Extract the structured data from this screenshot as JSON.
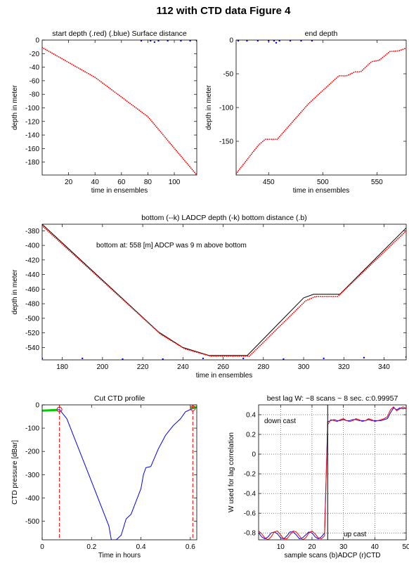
{
  "title": "112 with CTD data   Figure 4",
  "chart_data": [
    {
      "type": "line",
      "title": "start depth (.red) (.blue) Surface distance",
      "xlabel": "time in ensembles",
      "ylabel": "depth in meter",
      "xlim": [
        0,
        117
      ],
      "ylim": [
        -199,
        0
      ],
      "xticks": [
        20,
        40,
        60,
        80,
        100
      ],
      "yticks": [
        0,
        -20,
        -40,
        -60,
        -80,
        -100,
        -120,
        -140,
        -160,
        -180
      ],
      "grid": false,
      "series": [
        {
          "color": "#ff0000",
          "style": "dotted",
          "x": [
            0,
            40,
            80,
            117
          ],
          "values": [
            -11,
            -55,
            -113,
            -199
          ]
        },
        {
          "color": "#0000ff",
          "style": "dots",
          "x": [
            75,
            82,
            85,
            88,
            95,
            105,
            112,
            117
          ],
          "values": [
            -1,
            -1,
            -3,
            -1,
            -1,
            -1,
            -1,
            -1
          ]
        }
      ]
    },
    {
      "type": "line",
      "title": "end depth",
      "xlabel": "time in ensembles",
      "ylabel": "depth in meter",
      "xlim": [
        420,
        577
      ],
      "ylim": [
        -200,
        0
      ],
      "xticks": [
        450,
        500,
        550
      ],
      "yticks": [
        0,
        -50,
        -100,
        -150
      ],
      "grid": false,
      "series": [
        {
          "color": "#ff0000",
          "style": "dotted",
          "x": [
            420,
            441,
            447,
            458,
            487,
            510,
            515,
            522,
            530,
            535,
            545,
            552,
            562,
            570,
            577
          ],
          "values": [
            -198,
            -155,
            -147,
            -147,
            -94,
            -60,
            -53,
            -53,
            -47,
            -47,
            -32,
            -30,
            -17,
            -16,
            -12
          ]
        },
        {
          "color": "#0000ff",
          "style": "dots",
          "x": [
            422,
            430,
            440,
            450,
            455,
            457,
            460,
            470,
            480,
            490
          ],
          "values": [
            -1,
            -1,
            -1,
            -1,
            -1,
            -4,
            -1,
            -1,
            -1,
            -1
          ]
        }
      ]
    },
    {
      "type": "line",
      "title": "bottom (--k) LADCP depth (-k) bottom distance (.b)",
      "xlabel": "time in ensembles",
      "ylabel": "depth in meter",
      "annotations": [
        "bottom at: 558 [m]   ADCP was 9 m above bottom"
      ],
      "xlim": [
        170,
        351
      ],
      "ylim": [
        -557,
        -371
      ],
      "xticks": [
        180,
        200,
        220,
        240,
        260,
        280,
        300,
        320,
        340
      ],
      "yticks": [
        -380,
        -400,
        -420,
        -440,
        -460,
        -480,
        -500,
        -520,
        -540
      ],
      "grid": false,
      "series": [
        {
          "color": "#000000",
          "style": "line",
          "x": [
            170,
            228,
            240,
            253,
            272,
            300,
            305,
            318,
            351
          ],
          "values": [
            -371,
            -519,
            -540,
            -551,
            -551,
            -472,
            -467,
            -467,
            -376
          ]
        },
        {
          "color": "#ff0000",
          "style": "dotted",
          "x": [
            170,
            229,
            241,
            254,
            273,
            301,
            306,
            317,
            351
          ],
          "values": [
            -373,
            -522,
            -542,
            -552,
            -552,
            -476,
            -470,
            -470,
            -380
          ]
        },
        {
          "color": "#0000ff",
          "style": "dots",
          "x": [
            170,
            190,
            210,
            230,
            250,
            270,
            290,
            310,
            330,
            351
          ],
          "values": [
            -555,
            -555,
            -556,
            -556,
            -555,
            -555,
            -556,
            -555,
            -554,
            -553
          ]
        }
      ]
    },
    {
      "type": "line",
      "title": "Cut CTD profile",
      "xlabel": "Time in hours",
      "ylabel": "CTD pressure [dBar]",
      "xlim": [
        0,
        0.626
      ],
      "ylim": [
        -580,
        0
      ],
      "xticks": [
        0,
        0.2,
        0.4,
        0.6
      ],
      "yticks": [
        0,
        -100,
        -200,
        -300,
        -400,
        -500
      ],
      "grid": false,
      "series": [
        {
          "color": "#0000ff",
          "style": "line",
          "x": [
            0,
            0.05,
            0.07,
            0.1,
            0.2,
            0.27,
            0.28,
            0.3,
            0.32,
            0.34,
            0.36,
            0.4,
            0.41,
            0.42,
            0.44,
            0.47,
            0.5,
            0.53,
            0.56,
            0.58,
            0.6,
            0.626
          ],
          "values": [
            -25,
            -25,
            -20,
            -60,
            -330,
            -520,
            -580,
            -580,
            -560,
            -490,
            -470,
            -360,
            -300,
            -270,
            -265,
            -190,
            -130,
            -90,
            -60,
            -30,
            -20,
            -12
          ]
        },
        {
          "color": "#00cc00",
          "style": "thick",
          "x": [
            0,
            0.06
          ],
          "values": [
            -25,
            -22
          ]
        },
        {
          "color": "#00cc00",
          "style": "thick",
          "x": [
            0.6,
            0.626
          ],
          "values": [
            -15,
            -10
          ]
        },
        {
          "color": "#ff0000",
          "style": "dashed",
          "x": [
            0.07,
            0.07
          ],
          "values": [
            0,
            -580
          ]
        },
        {
          "color": "#ff0000",
          "style": "dashed",
          "x": [
            0.61,
            0.61
          ],
          "values": [
            0,
            -580
          ]
        },
        {
          "color": "#ff0000",
          "style": "circle",
          "x": [
            0.07,
            0.61
          ],
          "values": [
            -20,
            -15
          ]
        }
      ]
    },
    {
      "type": "line",
      "title": "best lag W: −8 scans ~ 8 sec.  c:0.99957",
      "xlabel": "sample scans (b)ADCP (r)CTD",
      "ylabel": "W used for lag correlation",
      "annotations": [
        "down cast",
        "up cast"
      ],
      "xlim": [
        3,
        50
      ],
      "ylim": [
        -0.87,
        0.5
      ],
      "xticks": [
        10,
        20,
        30,
        40,
        50
      ],
      "yticks": [
        -0.8,
        -0.6,
        -0.4,
        -0.2,
        0,
        0.2,
        0.4
      ],
      "grid": true,
      "series": [
        {
          "color": "#0000ff",
          "style": "line",
          "x": [
            3,
            4,
            5,
            6,
            7,
            8,
            9,
            10,
            11,
            12,
            13,
            14,
            15,
            16,
            17,
            18,
            19,
            20,
            21,
            22,
            23,
            24,
            25,
            26,
            27,
            28,
            29,
            30,
            31,
            32,
            33,
            34,
            35,
            36,
            37,
            38,
            39,
            40,
            41,
            42,
            43,
            44,
            45,
            46,
            47,
            48,
            49,
            50
          ],
          "values": [
            -0.8,
            -0.84,
            -0.86,
            -0.84,
            -0.8,
            -0.79,
            -0.81,
            -0.85,
            -0.86,
            -0.83,
            -0.79,
            -0.79,
            -0.82,
            -0.86,
            -0.85,
            -0.82,
            -0.79,
            -0.8,
            -0.84,
            -0.86,
            -0.84,
            -0.8,
            0.33,
            0.34,
            0.35,
            0.34,
            0.34,
            0.35,
            0.34,
            0.34,
            0.35,
            0.35,
            0.34,
            0.34,
            0.34,
            0.35,
            0.34,
            0.34,
            0.34,
            0.34,
            0.35,
            0.36,
            0.42,
            0.47,
            0.45,
            0.47,
            0.46,
            0.47
          ]
        },
        {
          "color": "#ff0000",
          "style": "line",
          "x": [
            3,
            4,
            5,
            6,
            7,
            8,
            9,
            10,
            11,
            12,
            13,
            14,
            15,
            16,
            17,
            18,
            19,
            20,
            21,
            22,
            23,
            24,
            25,
            26,
            27,
            28,
            29,
            30,
            31,
            32,
            33,
            34,
            35,
            36,
            37,
            38,
            39,
            40,
            41,
            42,
            43,
            44,
            45,
            46,
            47,
            48,
            49,
            50
          ],
          "values": [
            -0.78,
            -0.81,
            -0.85,
            -0.87,
            -0.84,
            -0.79,
            -0.78,
            -0.82,
            -0.86,
            -0.86,
            -0.82,
            -0.78,
            -0.79,
            -0.83,
            -0.87,
            -0.85,
            -0.8,
            -0.78,
            -0.81,
            -0.85,
            -0.86,
            -0.83,
            0.3,
            0.35,
            0.34,
            0.33,
            0.35,
            0.36,
            0.34,
            0.33,
            0.34,
            0.36,
            0.35,
            0.33,
            0.34,
            0.36,
            0.35,
            0.33,
            0.34,
            0.35,
            0.36,
            0.38,
            0.45,
            0.48,
            0.44,
            0.46,
            0.48,
            0.46
          ]
        },
        {
          "color": "#000000",
          "style": "line",
          "x": [
            25,
            25
          ],
          "values": [
            -0.87,
            0.5
          ]
        }
      ]
    }
  ]
}
